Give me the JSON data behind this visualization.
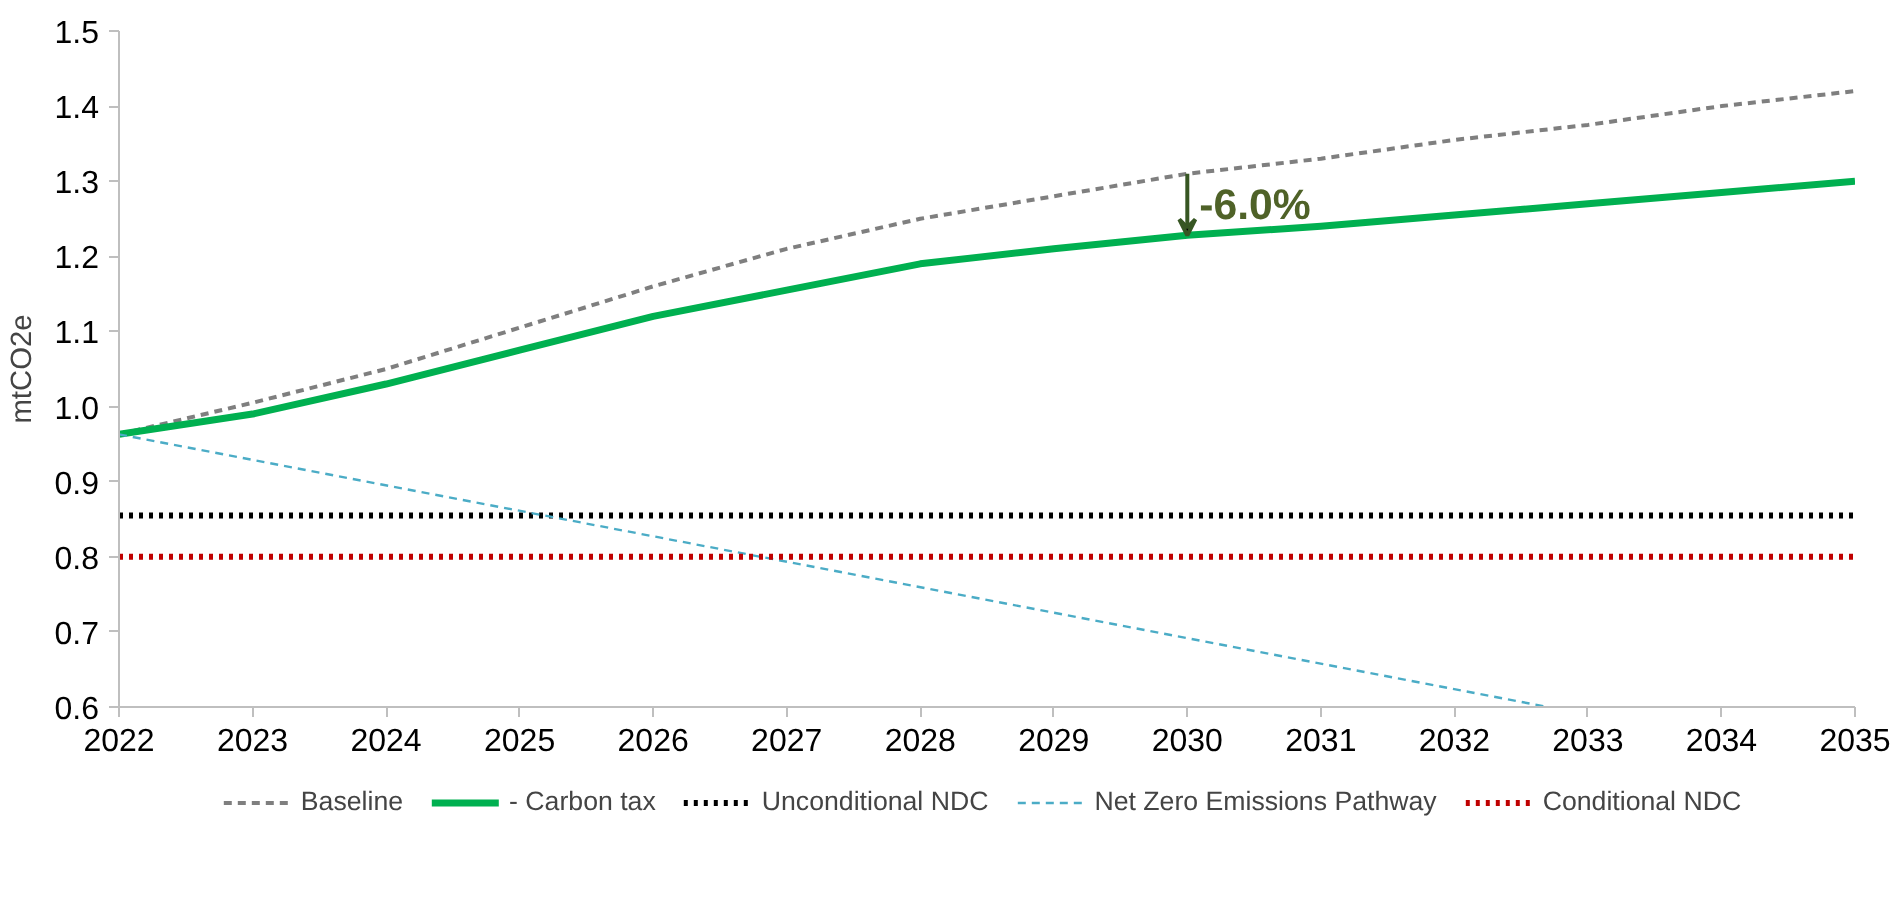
{
  "chart_data": {
    "type": "line",
    "ylabel": "mtCO2e",
    "x": [
      2022,
      2023,
      2024,
      2025,
      2026,
      2027,
      2028,
      2029,
      2030,
      2031,
      2032,
      2033,
      2034,
      2035
    ],
    "xlim": [
      2022,
      2035
    ],
    "xticks": [
      2022,
      2023,
      2024,
      2025,
      2026,
      2027,
      2028,
      2029,
      2030,
      2031,
      2032,
      2033,
      2034,
      2035
    ],
    "ylim": [
      0.6,
      1.5
    ],
    "yticks": [
      {
        "value": 0.6,
        "label": "0.6"
      },
      {
        "value": 0.7,
        "label": "0.7"
      },
      {
        "value": 0.8,
        "label": "0.8"
      },
      {
        "value": 0.9,
        "label": "0.9"
      },
      {
        "value": 1.0,
        "label": "1.0"
      },
      {
        "value": 1.1,
        "label": "1.1"
      },
      {
        "value": 1.2,
        "label": "1.2"
      },
      {
        "value": 1.3,
        "label": "1.3"
      },
      {
        "value": 1.4,
        "label": "1.4"
      },
      {
        "value": 1.5,
        "label": "1.5"
      }
    ],
    "grid": false,
    "legend": "bottom",
    "marker": "none",
    "series": [
      {
        "name": "Baseline",
        "color": "#7f7f7f",
        "line_style": "dashed",
        "values": [
          0.963,
          1.005,
          1.05,
          1.105,
          1.16,
          1.21,
          1.25,
          1.28,
          1.31,
          1.33,
          1.355,
          1.375,
          1.4,
          1.42
        ]
      },
      {
        "name": "- Carbon tax",
        "color": "#00b050",
        "line_style": "solid",
        "values": [
          0.963,
          0.99,
          1.03,
          1.075,
          1.12,
          1.155,
          1.19,
          1.21,
          1.228,
          1.24,
          1.255,
          1.27,
          1.285,
          1.3
        ]
      },
      {
        "name": "Unconditional NDC",
        "color": "#000000",
        "line_style": "dotted",
        "x": [
          2022,
          2035
        ],
        "values": [
          0.855,
          0.855
        ]
      },
      {
        "name": "Net Zero Emissions Pathway",
        "color": "#4bacc6",
        "line_style": "dashed",
        "x": [
          2022,
          2032.7
        ],
        "values": [
          0.963,
          0.6
        ]
      },
      {
        "name": "Conditional NDC",
        "color": "#c00000",
        "line_style": "dotted",
        "x": [
          2022,
          2035
        ],
        "values": [
          0.8,
          0.8
        ]
      }
    ],
    "annotations": [
      {
        "text": "-6.0%",
        "x": 2030,
        "y": 1.228
      }
    ]
  }
}
